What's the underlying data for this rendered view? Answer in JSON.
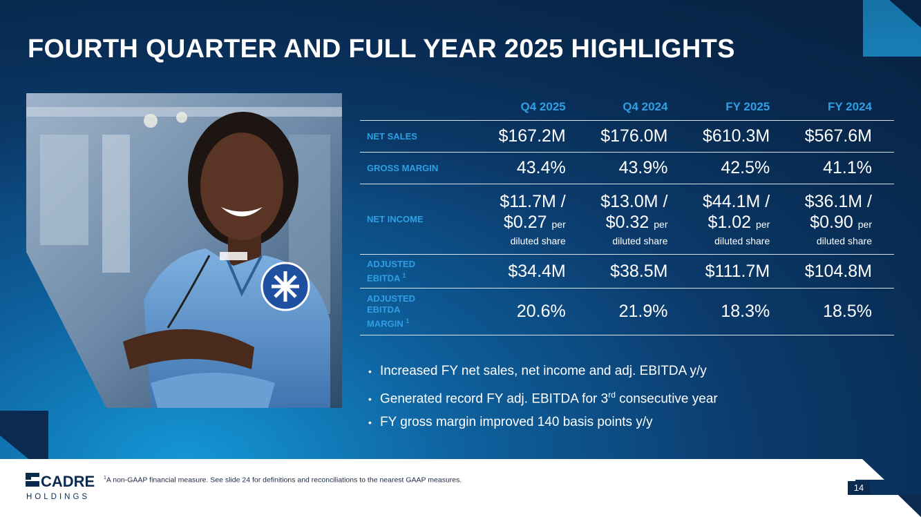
{
  "slide": {
    "title": "FOURTH QUARTER AND FULL YEAR 2025 HIGHLIGHTS",
    "page_number": "14"
  },
  "table": {
    "columns": [
      "Q4 2025",
      "Q4 2024",
      "FY 2025",
      "FY 2024"
    ],
    "rows": {
      "net_sales": {
        "label": "NET SALES",
        "values": [
          "$167.2M",
          "$176.0M",
          "$610.3M",
          "$567.6M"
        ]
      },
      "gross_margin": {
        "label": "GROSS MARGIN",
        "values": [
          "43.4%",
          "43.9%",
          "42.5%",
          "41.1%"
        ]
      },
      "net_income": {
        "label": "NET INCOME",
        "values": [
          {
            "amount": "$11.7M /",
            "eps": "$0.27",
            "per": "per",
            "suffix": "diluted share"
          },
          {
            "amount": "$13.0M /",
            "eps": "$0.32",
            "per": "per",
            "suffix": "diluted share"
          },
          {
            "amount": "$44.1M /",
            "eps": "$1.02",
            "per": "per",
            "suffix": "diluted share"
          },
          {
            "amount": "$36.1M /",
            "eps": "$0.90",
            "per": "per",
            "suffix": "diluted share"
          }
        ]
      },
      "adjusted_ebitda": {
        "label_line1": "ADJUSTED",
        "label_line2": "EBITDA",
        "footnote_mark": "1",
        "values": [
          "$34.4M",
          "$38.5M",
          "$111.7M",
          "$104.8M"
        ]
      },
      "adjusted_ebitda_margin": {
        "label_line1": "ADJUSTED",
        "label_line2": "EBITDA",
        "label_line3": "MARGIN",
        "footnote_mark": "1",
        "values": [
          "20.6%",
          "21.9%",
          "18.3%",
          "18.5%"
        ]
      }
    }
  },
  "bullets": {
    "marker": "•",
    "items": [
      {
        "text": "Increased FY net sales, net income and adj. EBITDA y/y"
      },
      {
        "before": "Generated record FY adj. EBITDA for 3",
        "sup": "rd",
        "after": " consecutive year"
      },
      {
        "text": "FY gross margin improved 140 basis points y/y"
      }
    ]
  },
  "footer": {
    "logo_top": "CADRE",
    "logo_bottom": "HOLDINGS",
    "footnote_mark": "1",
    "footnote": "A non-GAAP financial measure. See slide 24 for definitions and reconciliations to the nearest GAAP measures."
  },
  "colors": {
    "accent_blue": "#2f9fe3",
    "navy": "#0b2a4f",
    "bright_blue": "#1ea0e6",
    "white": "#ffffff"
  }
}
